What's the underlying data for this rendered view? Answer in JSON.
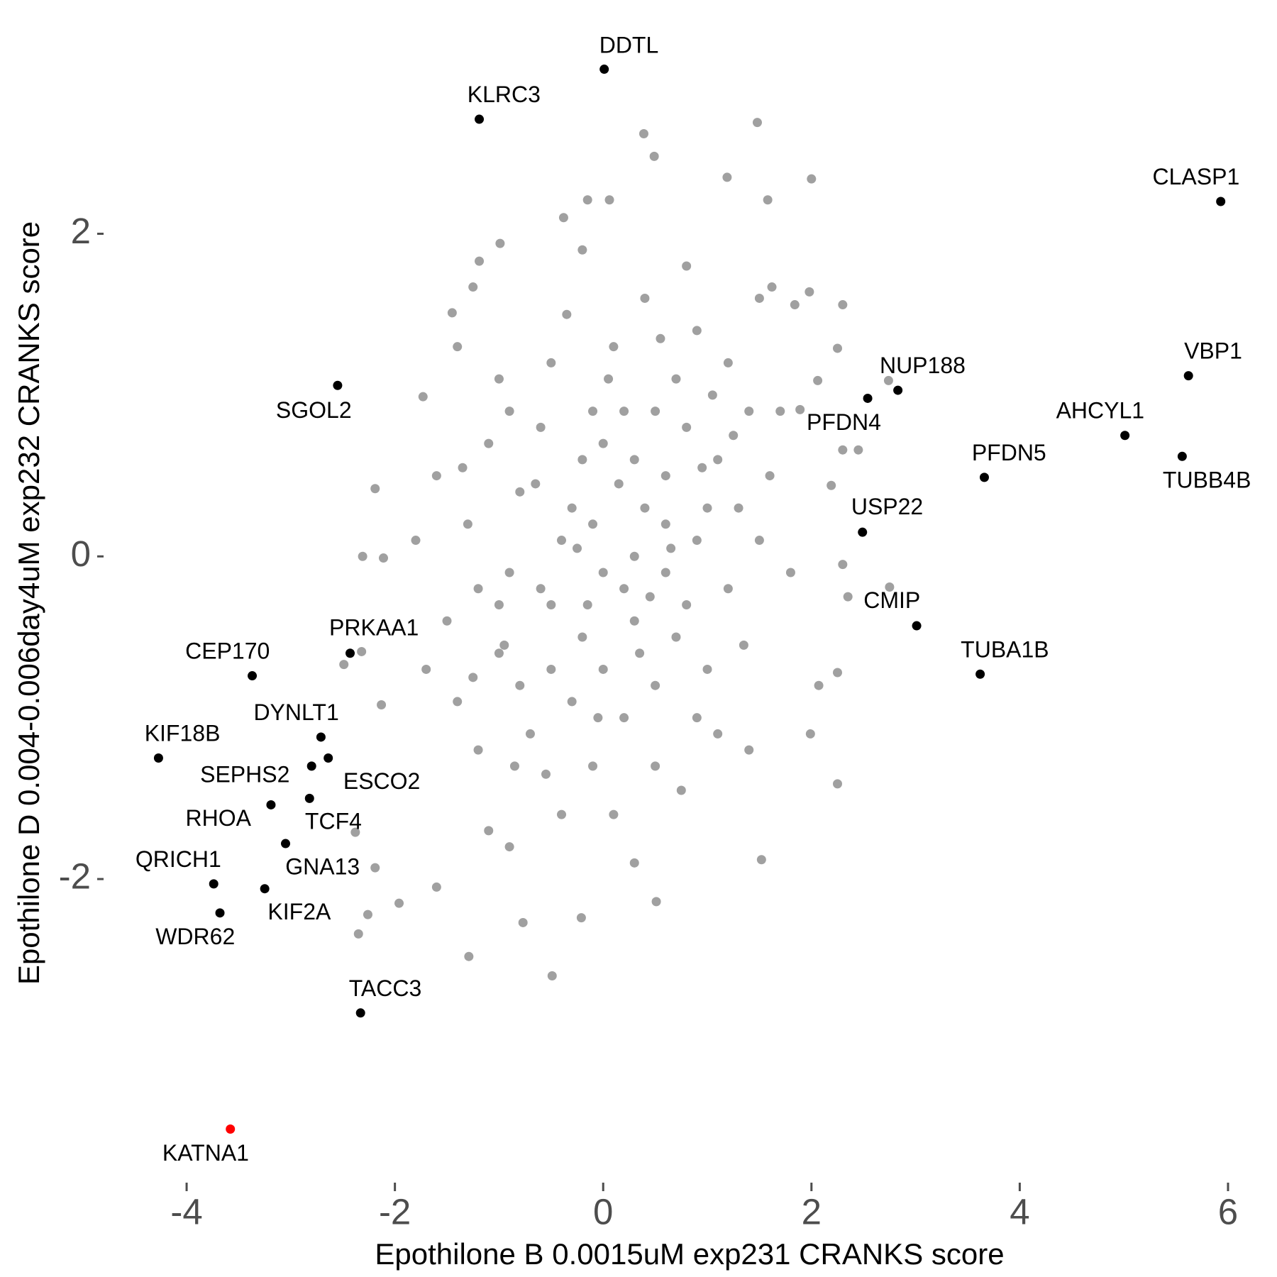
{
  "chart_data": {
    "type": "scatter",
    "x_label": "Epothilone B 0.0015uM exp231 CRANKS score",
    "y_label": "Epothilone D 0.004-0.006day4uM exp232 CRANKS score",
    "xlim": [
      -4.45,
      6.3
    ],
    "ylim": [
      -3.75,
      3.15
    ],
    "xticks": [
      -4,
      -2,
      0,
      2,
      4,
      6
    ],
    "yticks": [
      -2,
      0,
      2
    ],
    "grid": false,
    "series": [
      {
        "color": "#a0a0a0",
        "x": [
          0.39,
          1.48,
          0.49,
          1.19,
          2.0,
          -0.15,
          0.06,
          1.58,
          -0.99,
          -1.19,
          -0.38,
          -1.25,
          1.62,
          1.98,
          2.3,
          -1.45,
          2.25,
          -1.73,
          2.3,
          2.45,
          2.74,
          -2.19,
          -2.31,
          -2.11,
          2.3,
          2.35,
          2.75,
          2.07,
          2.25,
          1.99,
          2.25,
          1.52,
          0.51,
          -0.49,
          -1.29,
          -2.35,
          -1.96,
          -2.19,
          -2.38,
          -0.21,
          -0.77,
          -1.6,
          -2.26,
          -2.13,
          -2.49,
          -2.32,
          1.84,
          2.06,
          2.19,
          1.89,
          -0.1,
          0.3,
          0.6,
          -0.5,
          0.9,
          -0.8,
          0.2,
          -0.3,
          1.1,
          -1.0,
          0.5,
          -0.6,
          0.0,
          0.4,
          -0.2,
          0.8,
          -0.9,
          1.3,
          -1.2,
          0.1,
          -0.1,
          0.7,
          -0.7,
          1.0,
          -1.1,
          0.3,
          -0.4,
          0.6,
          -0.2,
          0.2,
          1.4,
          -1.4,
          0.9,
          -0.5,
          0.5,
          -1.3,
          1.2,
          0.0,
          0.0,
          0.8,
          -0.8,
          1.5,
          -1.5,
          0.4,
          -0.4,
          1.1,
          -1.0,
          0.6,
          -0.6,
          0.3,
          -0.3,
          0.7,
          -0.9,
          1.2,
          -1.2,
          0.2,
          -0.1,
          0.1,
          0.9,
          -1.6,
          1.6,
          0.5,
          -0.5,
          1.0,
          -1.0,
          0.35,
          -0.35,
          0.75,
          1.35,
          -1.35,
          0.15,
          -0.15,
          0.55,
          -0.55,
          0.95,
          -0.95,
          1.25,
          -1.25,
          0.05,
          -0.05,
          0.65,
          -0.65,
          1.05,
          -0.85,
          0.45,
          -0.25,
          1.7,
          -1.7,
          1.8,
          -1.8,
          0.8,
          -0.2,
          0.3,
          -0.9,
          1.5,
          -1.4,
          1.4,
          -1.1
        ],
        "y": [
          2.62,
          2.69,
          2.48,
          2.35,
          2.34,
          2.21,
          2.21,
          2.21,
          1.94,
          1.83,
          2.1,
          1.67,
          1.67,
          1.64,
          1.56,
          1.51,
          1.29,
          0.99,
          0.66,
          0.66,
          1.09,
          0.42,
          0.0,
          -0.01,
          -0.05,
          -0.25,
          -0.19,
          -0.8,
          -0.72,
          -1.1,
          -1.41,
          -1.88,
          -2.14,
          -2.6,
          -2.48,
          -2.34,
          -2.15,
          -1.93,
          -1.71,
          -2.24,
          -2.27,
          -2.05,
          -2.22,
          -0.92,
          -0.67,
          -0.59,
          1.56,
          1.09,
          0.44,
          0.91,
          0.2,
          -0.4,
          0.5,
          -0.3,
          0.1,
          0.4,
          0.9,
          -0.9,
          0.6,
          -0.6,
          -0.8,
          0.8,
          -0.1,
          0.3,
          0.6,
          -0.3,
          -0.1,
          0.3,
          -0.2,
          1.3,
          -1.3,
          1.1,
          -1.1,
          -0.7,
          0.7,
          0.0,
          0.1,
          -0.1,
          -0.5,
          -1.0,
          0.9,
          -0.9,
          1.4,
          1.2,
          -1.3,
          0.2,
          -0.2,
          0.7,
          -0.7,
          0.8,
          -0.8,
          0.1,
          -0.4,
          1.6,
          -1.6,
          -1.1,
          1.1,
          0.2,
          -0.2,
          0.6,
          0.3,
          -0.5,
          0.9,
          1.2,
          -1.2,
          -0.2,
          0.9,
          -1.6,
          -1.0,
          0.5,
          0.5,
          0.9,
          -0.7,
          0.3,
          -0.3,
          -0.6,
          1.5,
          -1.45,
          -0.55,
          0.55,
          0.45,
          -0.3,
          1.35,
          -1.35,
          0.55,
          -0.55,
          0.75,
          -0.75,
          1.1,
          -1.0,
          0.05,
          0.45,
          1.0,
          -1.3,
          -0.25,
          0.05,
          0.9,
          -0.7,
          -0.1,
          0.1,
          1.8,
          1.9,
          -1.9,
          -1.8,
          1.6,
          1.3,
          -1.2,
          -1.7
        ]
      },
      {
        "color": "#000000",
        "labels": [
          "DDTL",
          "KLRC3",
          "CLASP1",
          "VBP1",
          "NUP188",
          "PFDN4",
          "AHCYL1",
          "TUBB4B",
          "PFDN5",
          "USP22",
          "CMIP",
          "TUBA1B",
          "SGOL2",
          "PRKAA1",
          "CEP170",
          "DYNLT1",
          "KIF18B",
          "ESCO2",
          "SEPHS2",
          "TCF4",
          "RHOA",
          "GNA13",
          "QRICH1",
          "KIF2A",
          "WDR62",
          "TACC3"
        ],
        "x": [
          0.01,
          -1.19,
          5.93,
          5.62,
          2.83,
          2.54,
          5.01,
          5.56,
          3.66,
          2.49,
          3.01,
          3.62,
          -2.55,
          -2.43,
          -3.37,
          -2.71,
          -4.27,
          -2.64,
          -2.8,
          -2.82,
          -3.19,
          -3.05,
          -3.74,
          -3.25,
          -3.68,
          -2.33
        ],
        "y": [
          3.02,
          2.71,
          2.2,
          1.12,
          1.03,
          0.98,
          0.75,
          0.62,
          0.49,
          0.15,
          -0.43,
          -0.73,
          1.06,
          -0.6,
          -0.74,
          -1.12,
          -1.25,
          -1.25,
          -1.3,
          -1.5,
          -1.54,
          -1.78,
          -2.03,
          -2.06,
          -2.21,
          -2.83
        ]
      },
      {
        "color": "#ff0000",
        "labels": [
          "KATNA1"
        ],
        "x": [
          -3.58
        ],
        "y": [
          -3.55
        ]
      }
    ]
  }
}
